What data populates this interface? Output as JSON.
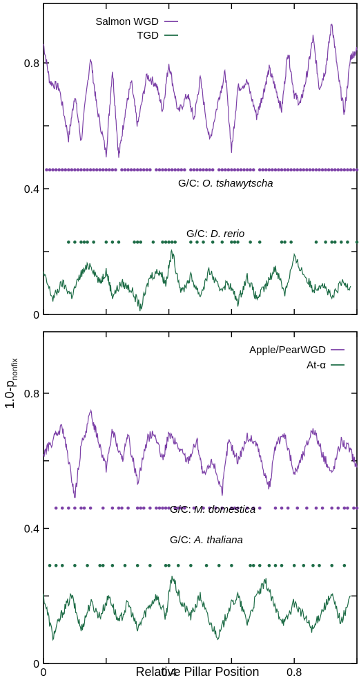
{
  "chart_data": [
    {
      "type": "line",
      "panel": "top",
      "xlim": [
        0,
        1
      ],
      "ylim": [
        0,
        1
      ],
      "yticks": [
        "0",
        "0.4",
        "0.8"
      ],
      "series": [
        {
          "name": "Salmon WGD",
          "color": "#7b3fa6",
          "x": [
            0,
            0.02,
            0.05,
            0.08,
            0.1,
            0.12,
            0.15,
            0.17,
            0.2,
            0.22,
            0.24,
            0.26,
            0.28,
            0.3,
            0.33,
            0.36,
            0.38,
            0.4,
            0.43,
            0.46,
            0.48,
            0.5,
            0.53,
            0.56,
            0.58,
            0.6,
            0.62,
            0.65,
            0.68,
            0.7,
            0.72,
            0.74,
            0.76,
            0.78,
            0.8,
            0.82,
            0.84,
            0.86,
            0.88,
            0.9,
            0.92,
            0.94,
            0.96,
            0.98,
            1.0
          ],
          "y": [
            0.86,
            0.74,
            0.72,
            0.56,
            0.7,
            0.55,
            0.82,
            0.66,
            0.51,
            0.78,
            0.5,
            0.64,
            0.74,
            0.6,
            0.76,
            0.73,
            0.65,
            0.8,
            0.64,
            0.7,
            0.62,
            0.75,
            0.55,
            0.69,
            0.77,
            0.52,
            0.72,
            0.74,
            0.63,
            0.7,
            0.78,
            0.72,
            0.65,
            0.84,
            0.7,
            0.67,
            0.76,
            0.88,
            0.72,
            0.78,
            0.93,
            0.76,
            0.64,
            0.82,
            0.84
          ]
        },
        {
          "name": "TGD",
          "color": "#1c6b45",
          "x": [
            0,
            0.03,
            0.06,
            0.09,
            0.12,
            0.15,
            0.18,
            0.2,
            0.22,
            0.25,
            0.28,
            0.31,
            0.34,
            0.37,
            0.39,
            0.41,
            0.44,
            0.47,
            0.5,
            0.53,
            0.56,
            0.59,
            0.62,
            0.65,
            0.68,
            0.71,
            0.74,
            0.77,
            0.8,
            0.83,
            0.86,
            0.89,
            0.92,
            0.95,
            0.98
          ],
          "y": [
            0.13,
            0.05,
            0.1,
            0.06,
            0.13,
            0.16,
            0.1,
            0.14,
            0.06,
            0.1,
            0.08,
            0.02,
            0.12,
            0.14,
            0.1,
            0.2,
            0.07,
            0.12,
            0.06,
            0.14,
            0.08,
            0.1,
            0.04,
            0.12,
            0.05,
            0.09,
            0.15,
            0.07,
            0.18,
            0.13,
            0.08,
            0.1,
            0.05,
            0.1,
            0.09
          ]
        }
      ],
      "annotations": [
        "G/C: ",
        "O. tshawytscha",
        "G/C: ",
        "D. rerio"
      ],
      "gc_levels": [
        0.46,
        0.23
      ],
      "gc_positions_top": [
        0.01,
        0.02,
        0.03,
        0.04,
        0.05,
        0.06,
        0.07,
        0.08,
        0.09,
        0.1,
        0.11,
        0.12,
        0.13,
        0.14,
        0.15,
        0.16,
        0.17,
        0.18,
        0.19,
        0.2,
        0.21,
        0.22,
        0.23,
        0.25,
        0.26,
        0.27,
        0.28,
        0.29,
        0.3,
        0.31,
        0.32,
        0.33,
        0.34,
        0.36,
        0.37,
        0.38,
        0.39,
        0.4,
        0.41,
        0.42,
        0.43,
        0.44,
        0.45,
        0.47,
        0.48,
        0.49,
        0.5,
        0.51,
        0.52,
        0.53,
        0.54,
        0.56,
        0.57,
        0.58,
        0.59,
        0.6,
        0.61,
        0.62,
        0.63,
        0.64,
        0.65,
        0.66,
        0.67,
        0.69,
        0.7,
        0.71,
        0.72,
        0.73,
        0.74,
        0.75,
        0.76,
        0.77,
        0.78,
        0.79,
        0.8,
        0.81,
        0.82,
        0.83,
        0.84,
        0.85,
        0.86,
        0.87,
        0.88,
        0.89,
        0.9,
        0.91,
        0.92,
        0.93,
        0.94,
        0.95,
        0.96,
        0.97,
        0.98,
        0.99,
        1.0
      ],
      "gc_positions_bottom": [
        0.08,
        0.1,
        0.12,
        0.13,
        0.14,
        0.16,
        0.2,
        0.22,
        0.24,
        0.29,
        0.3,
        0.31,
        0.35,
        0.38,
        0.39,
        0.4,
        0.41,
        0.42,
        0.47,
        0.49,
        0.51,
        0.54,
        0.57,
        0.6,
        0.61,
        0.62,
        0.66,
        0.69,
        0.76,
        0.77,
        0.79,
        0.87,
        0.9,
        0.92,
        0.93,
        0.95,
        0.97,
        1.0
      ]
    },
    {
      "type": "line",
      "panel": "bottom",
      "xlim": [
        0,
        1
      ],
      "ylim": [
        0,
        1
      ],
      "xticks": [
        "0",
        "0.4",
        "0.8"
      ],
      "yticks": [
        "0",
        "0.4",
        "0.8"
      ],
      "xlabel": "Relative Pillar Position",
      "ylabel_main": "1.0-p",
      "ylabel_sub": "nonfix",
      "series": [
        {
          "name": "Apple/PearWGD",
          "color": "#7b3fa6",
          "x": [
            0,
            0.03,
            0.06,
            0.08,
            0.1,
            0.12,
            0.15,
            0.17,
            0.2,
            0.22,
            0.25,
            0.27,
            0.3,
            0.33,
            0.35,
            0.38,
            0.4,
            0.43,
            0.46,
            0.49,
            0.51,
            0.54,
            0.57,
            0.59,
            0.62,
            0.65,
            0.68,
            0.7,
            0.72,
            0.74,
            0.77,
            0.8,
            0.83,
            0.86,
            0.89,
            0.92,
            0.95,
            0.98,
            1.0
          ],
          "y": [
            0.62,
            0.66,
            0.7,
            0.6,
            0.49,
            0.64,
            0.74,
            0.68,
            0.58,
            0.69,
            0.6,
            0.67,
            0.54,
            0.66,
            0.69,
            0.6,
            0.68,
            0.64,
            0.6,
            0.66,
            0.55,
            0.6,
            0.51,
            0.66,
            0.6,
            0.67,
            0.65,
            0.58,
            0.52,
            0.64,
            0.68,
            0.56,
            0.62,
            0.7,
            0.62,
            0.56,
            0.66,
            0.63,
            0.58
          ]
        },
        {
          "name": "At-α",
          "color": "#1c6b45",
          "x": [
            0,
            0.03,
            0.06,
            0.09,
            0.12,
            0.15,
            0.18,
            0.21,
            0.24,
            0.27,
            0.3,
            0.33,
            0.36,
            0.39,
            0.41,
            0.44,
            0.47,
            0.5,
            0.53,
            0.56,
            0.59,
            0.62,
            0.65,
            0.68,
            0.71,
            0.74,
            0.77,
            0.8,
            0.83,
            0.86,
            0.89,
            0.92,
            0.95,
            0.98
          ],
          "y": [
            0.2,
            0.08,
            0.15,
            0.2,
            0.1,
            0.18,
            0.14,
            0.2,
            0.12,
            0.18,
            0.1,
            0.16,
            0.2,
            0.14,
            0.26,
            0.18,
            0.14,
            0.2,
            0.12,
            0.08,
            0.16,
            0.2,
            0.12,
            0.2,
            0.24,
            0.16,
            0.12,
            0.18,
            0.14,
            0.1,
            0.16,
            0.2,
            0.12,
            0.2
          ]
        }
      ],
      "annotations": [
        "G/C: ",
        "M. domestica",
        "G/C: ",
        "A. thaliana"
      ],
      "gc_levels": [
        0.46,
        0.29
      ],
      "gc_positions_top": [
        0.04,
        0.06,
        0.08,
        0.1,
        0.12,
        0.13,
        0.15,
        0.19,
        0.22,
        0.24,
        0.25,
        0.27,
        0.3,
        0.31,
        0.32,
        0.34,
        0.36,
        0.37,
        0.38,
        0.39,
        0.4,
        0.42,
        0.43,
        0.44,
        0.45,
        0.48,
        0.51,
        0.53,
        0.55,
        0.57,
        0.6,
        0.61,
        0.62,
        0.65,
        0.67,
        0.69,
        0.74,
        0.76,
        0.78,
        0.81,
        0.84,
        0.87,
        0.89,
        0.92,
        0.94,
        0.96,
        0.97,
        0.99,
        1.0
      ],
      "gc_positions_bottom": [
        0.02,
        0.04,
        0.06,
        0.1,
        0.14,
        0.18,
        0.19,
        0.22,
        0.26,
        0.3,
        0.34,
        0.39,
        0.4,
        0.43,
        0.47,
        0.52,
        0.56,
        0.6,
        0.66,
        0.67,
        0.69,
        0.72,
        0.74,
        0.76,
        0.8,
        0.83,
        0.86,
        0.88,
        0.92,
        0.96
      ]
    }
  ]
}
